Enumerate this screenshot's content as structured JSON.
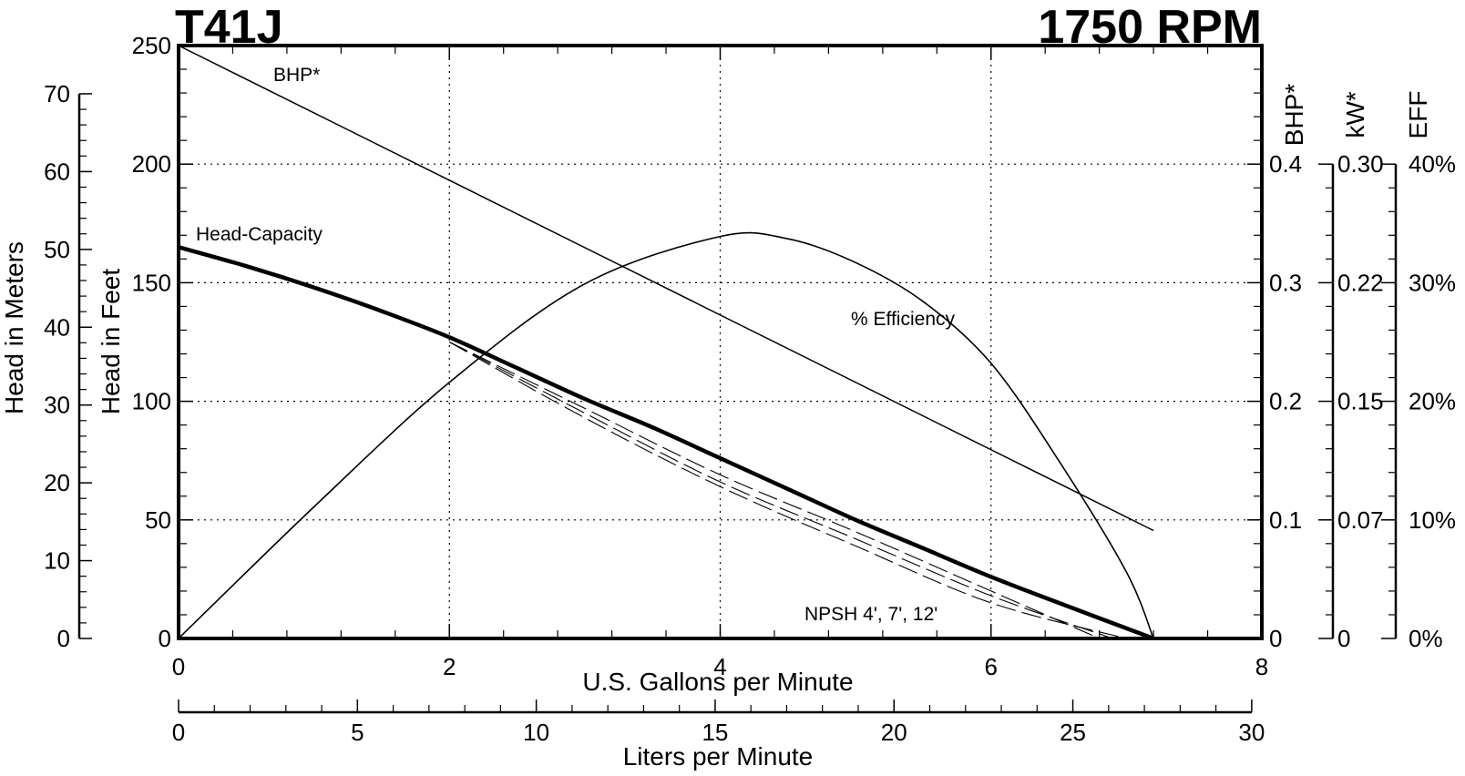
{
  "title_left": "T41J",
  "title_right": "1750 RPM",
  "chart_data": {
    "type": "line",
    "title": "T41J",
    "subtitle": "1750 RPM",
    "xlabel": "U.S. Gallons per Minute",
    "xlabel_secondary": "Liters per Minute",
    "ylabel": "Head in Feet",
    "ylabel_secondary": "Head in Meters",
    "xlim": [
      0,
      8
    ],
    "ylim": [
      0,
      250
    ],
    "x_ticks": [
      "0",
      "2",
      "4",
      "6",
      "8"
    ],
    "y_ticks": [
      "0",
      "50",
      "100",
      "150",
      "200",
      "250"
    ],
    "lpm_lim": [
      0,
      30
    ],
    "lpm_ticks": [
      "0",
      "5",
      "10",
      "15",
      "20",
      "25",
      "30"
    ],
    "meters_lim": [
      0,
      70
    ],
    "meters_ticks": [
      "0",
      "10",
      "20",
      "30",
      "40",
      "50",
      "60",
      "70"
    ],
    "bhp_axis": {
      "label": "BHP*",
      "ticks": [
        "0",
        "0.1",
        "0.2",
        "0.3",
        "0.4"
      ]
    },
    "kw_axis": {
      "label": "kW*",
      "ticks": [
        "0",
        "0.07",
        "0.15",
        "0.22",
        "0.30"
      ]
    },
    "eff_axis": {
      "label": "EFF",
      "ticks": [
        "0%",
        "10%",
        "20%",
        "30%",
        "40%"
      ]
    },
    "grid": true,
    "series": [
      {
        "name": "Head-Capacity",
        "style": "bold",
        "x": [
          0,
          0.5,
          1,
          1.5,
          2,
          2.5,
          3,
          3.5,
          4,
          4.5,
          5,
          5.5,
          6,
          6.5,
          7.2
        ],
        "y": [
          165,
          157,
          148,
          138,
          127,
          114,
          101,
          89,
          76,
          63,
          50,
          38,
          26,
          15,
          0
        ]
      },
      {
        "name": "BHP*",
        "style": "thin",
        "x": [
          0,
          7.2
        ],
        "y": [
          0.5,
          0.091
        ]
      },
      {
        "name": "% Efficiency",
        "style": "thin",
        "x": [
          0,
          1,
          2,
          3,
          4,
          4.5,
          5,
          5.5,
          6,
          6.5,
          7,
          7.2
        ],
        "y": [
          0,
          11.1,
          21.6,
          29.9,
          33.9,
          33.7,
          31.7,
          28.4,
          23.2,
          15.0,
          5.6,
          0
        ]
      },
      {
        "name": "NPSH 4', 7', 12'",
        "style": "dashed",
        "curves": [
          {
            "x": [
              2,
              3,
              4,
              5,
              6,
              6.8
            ],
            "y": [
              125,
              97,
              69,
              45,
              20,
              0
            ]
          },
          {
            "x": [
              2,
              3,
              4,
              5,
              6,
              6.9
            ],
            "y": [
              125,
              95,
              66,
              42,
              18,
              0
            ]
          },
          {
            "x": [
              2,
              3,
              4,
              5,
              6,
              7.0
            ],
            "y": [
              125,
              93,
              64,
              39,
              15,
              0
            ]
          }
        ]
      }
    ],
    "annotations": [
      "BHP*",
      "Head-Capacity",
      "% Efficiency",
      "NPSH 4', 7', 12'"
    ]
  }
}
